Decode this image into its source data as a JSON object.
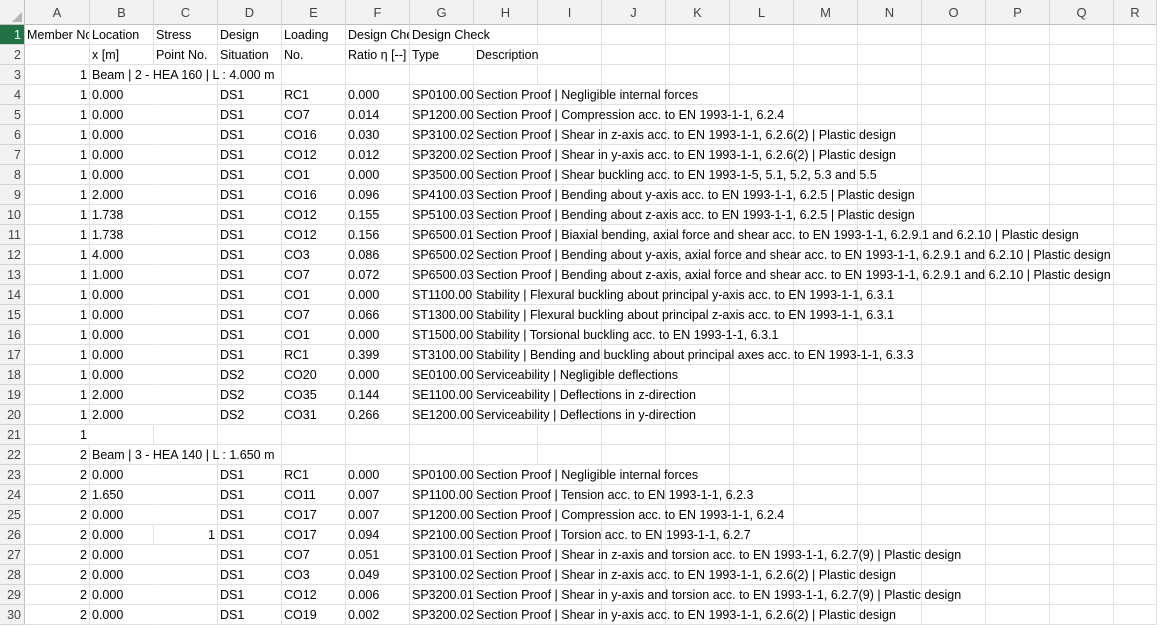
{
  "columns": [
    "A",
    "B",
    "C",
    "D",
    "E",
    "F",
    "G",
    "H",
    "I",
    "J",
    "K",
    "L",
    "M",
    "N",
    "O",
    "P",
    "Q",
    "R"
  ],
  "selected_row": 1,
  "rows": [
    {
      "n": "1",
      "a": "Member No.",
      "b": "Location",
      "c": "Stress",
      "d": "Design",
      "e": "Loading",
      "f": "Design Check",
      "g": "Design Check",
      "h": ""
    },
    {
      "n": "2",
      "a": "",
      "b": "x [m]",
      "c": "Point No.",
      "d": "Situation",
      "e": "No.",
      "f": "Ratio η [--]",
      "g": "Type",
      "h": "Description"
    },
    {
      "n": "3",
      "a": "1",
      "b": "Beam | 2 - HEA 160 | L : 4.000 m",
      "c": "",
      "d": "",
      "e": "",
      "f": "",
      "g": "",
      "h": ""
    },
    {
      "n": "4",
      "a": "1",
      "b": "0.000",
      "c": "",
      "d": "DS1",
      "e": "RC1",
      "f": "0.000",
      "g": "SP0100.00",
      "h": "Section Proof | Negligible internal forces"
    },
    {
      "n": "5",
      "a": "1",
      "b": "0.000",
      "c": "",
      "d": "DS1",
      "e": "CO7",
      "f": "0.014",
      "g": "SP1200.00",
      "h": "Section Proof | Compression acc. to EN 1993-1-1, 6.2.4"
    },
    {
      "n": "6",
      "a": "1",
      "b": "0.000",
      "c": "",
      "d": "DS1",
      "e": "CO16",
      "f": "0.030",
      "g": "SP3100.02",
      "h": "Section Proof | Shear in z-axis acc. to EN 1993-1-1, 6.2.6(2) | Plastic design"
    },
    {
      "n": "7",
      "a": "1",
      "b": "0.000",
      "c": "",
      "d": "DS1",
      "e": "CO12",
      "f": "0.012",
      "g": "SP3200.02",
      "h": "Section Proof | Shear in y-axis acc. to EN 1993-1-1, 6.2.6(2) | Plastic design"
    },
    {
      "n": "8",
      "a": "1",
      "b": "0.000",
      "c": "",
      "d": "DS1",
      "e": "CO1",
      "f": "0.000",
      "g": "SP3500.00",
      "h": "Section Proof | Shear buckling acc. to EN 1993-1-5, 5.1, 5.2, 5.3 and 5.5"
    },
    {
      "n": "9",
      "a": "1",
      "b": "2.000",
      "c": "",
      "d": "DS1",
      "e": "CO16",
      "f": "0.096",
      "g": "SP4100.03",
      "h": "Section Proof | Bending about y-axis acc. to EN 1993-1-1, 6.2.5 | Plastic design"
    },
    {
      "n": "10",
      "a": "1",
      "b": "1.738",
      "c": "",
      "d": "DS1",
      "e": "CO12",
      "f": "0.155",
      "g": "SP5100.03",
      "h": "Section Proof | Bending about z-axis acc. to EN 1993-1-1, 6.2.5 | Plastic design"
    },
    {
      "n": "11",
      "a": "1",
      "b": "1.738",
      "c": "",
      "d": "DS1",
      "e": "CO12",
      "f": "0.156",
      "g": "SP6500.01",
      "h": "Section Proof | Biaxial bending, axial force and shear acc. to EN 1993-1-1, 6.2.9.1 and 6.2.10 | Plastic design"
    },
    {
      "n": "12",
      "a": "1",
      "b": "4.000",
      "c": "",
      "d": "DS1",
      "e": "CO3",
      "f": "0.086",
      "g": "SP6500.02",
      "h": "Section Proof | Bending about y-axis, axial force and shear acc. to EN 1993-1-1, 6.2.9.1 and 6.2.10 | Plastic design"
    },
    {
      "n": "13",
      "a": "1",
      "b": "1.000",
      "c": "",
      "d": "DS1",
      "e": "CO7",
      "f": "0.072",
      "g": "SP6500.03",
      "h": "Section Proof | Bending about z-axis, axial force and shear acc. to EN 1993-1-1, 6.2.9.1 and 6.2.10 | Plastic design"
    },
    {
      "n": "14",
      "a": "1",
      "b": "0.000",
      "c": "",
      "d": "DS1",
      "e": "CO1",
      "f": "0.000",
      "g": "ST1100.00",
      "h": "Stability | Flexural buckling about principal y-axis acc. to EN 1993-1-1, 6.3.1"
    },
    {
      "n": "15",
      "a": "1",
      "b": "0.000",
      "c": "",
      "d": "DS1",
      "e": "CO7",
      "f": "0.066",
      "g": "ST1300.00",
      "h": "Stability | Flexural buckling about principal z-axis acc. to EN 1993-1-1, 6.3.1"
    },
    {
      "n": "16",
      "a": "1",
      "b": "0.000",
      "c": "",
      "d": "DS1",
      "e": "CO1",
      "f": "0.000",
      "g": "ST1500.00",
      "h": "Stability | Torsional buckling acc. to EN 1993-1-1, 6.3.1"
    },
    {
      "n": "17",
      "a": "1",
      "b": "0.000",
      "c": "",
      "d": "DS1",
      "e": "RC1",
      "f": "0.399",
      "g": "ST3100.00",
      "h": "Stability | Bending and buckling about principal axes acc. to EN 1993-1-1, 6.3.3"
    },
    {
      "n": "18",
      "a": "1",
      "b": "0.000",
      "c": "",
      "d": "DS2",
      "e": "CO20",
      "f": "0.000",
      "g": "SE0100.00",
      "h": "Serviceability | Negligible deflections"
    },
    {
      "n": "19",
      "a": "1",
      "b": "2.000",
      "c": "",
      "d": "DS2",
      "e": "CO35",
      "f": "0.144",
      "g": "SE1100.00",
      "h": "Serviceability | Deflections in z-direction"
    },
    {
      "n": "20",
      "a": "1",
      "b": "2.000",
      "c": "",
      "d": "DS2",
      "e": "CO31",
      "f": "0.266",
      "g": "SE1200.00",
      "h": "Serviceability | Deflections in y-direction"
    },
    {
      "n": "21",
      "a": "1",
      "b": "",
      "c": "",
      "d": "",
      "e": "",
      "f": "",
      "g": "",
      "h": ""
    },
    {
      "n": "22",
      "a": "2",
      "b": "Beam | 3 - HEA 140 | L : 1.650 m",
      "c": "",
      "d": "",
      "e": "",
      "f": "",
      "g": "",
      "h": ""
    },
    {
      "n": "23",
      "a": "2",
      "b": "0.000",
      "c": "",
      "d": "DS1",
      "e": "RC1",
      "f": "0.000",
      "g": "SP0100.00",
      "h": "Section Proof | Negligible internal forces"
    },
    {
      "n": "24",
      "a": "2",
      "b": "1.650",
      "c": "",
      "d": "DS1",
      "e": "CO11",
      "f": "0.007",
      "g": "SP1100.00",
      "h": "Section Proof | Tension acc. to EN 1993-1-1, 6.2.3"
    },
    {
      "n": "25",
      "a": "2",
      "b": "0.000",
      "c": "",
      "d": "DS1",
      "e": "CO17",
      "f": "0.007",
      "g": "SP1200.00",
      "h": "Section Proof | Compression acc. to EN 1993-1-1, 6.2.4"
    },
    {
      "n": "26",
      "a": "2",
      "b": "0.000",
      "c": "1",
      "d": "DS1",
      "e": "CO17",
      "f": "0.094",
      "g": "SP2100.00",
      "h": "Section Proof | Torsion acc. to EN 1993-1-1, 6.2.7"
    },
    {
      "n": "27",
      "a": "2",
      "b": "0.000",
      "c": "",
      "d": "DS1",
      "e": "CO7",
      "f": "0.051",
      "g": "SP3100.01",
      "h": "Section Proof | Shear in z-axis and torsion acc. to EN 1993-1-1, 6.2.7(9) | Plastic design"
    },
    {
      "n": "28",
      "a": "2",
      "b": "0.000",
      "c": "",
      "d": "DS1",
      "e": "CO3",
      "f": "0.049",
      "g": "SP3100.02",
      "h": "Section Proof | Shear in z-axis acc. to EN 1993-1-1, 6.2.6(2) | Plastic design"
    },
    {
      "n": "29",
      "a": "2",
      "b": "0.000",
      "c": "",
      "d": "DS1",
      "e": "CO12",
      "f": "0.006",
      "g": "SP3200.01",
      "h": "Section Proof | Shear in y-axis and torsion acc. to EN 1993-1-1, 6.2.7(9) | Plastic design"
    },
    {
      "n": "30",
      "a": "2",
      "b": "0.000",
      "c": "",
      "d": "DS1",
      "e": "CO19",
      "f": "0.002",
      "g": "SP3200.02",
      "h": "Section Proof | Shear in y-axis acc. to EN 1993-1-1, 6.2.6(2) | Plastic design"
    }
  ]
}
